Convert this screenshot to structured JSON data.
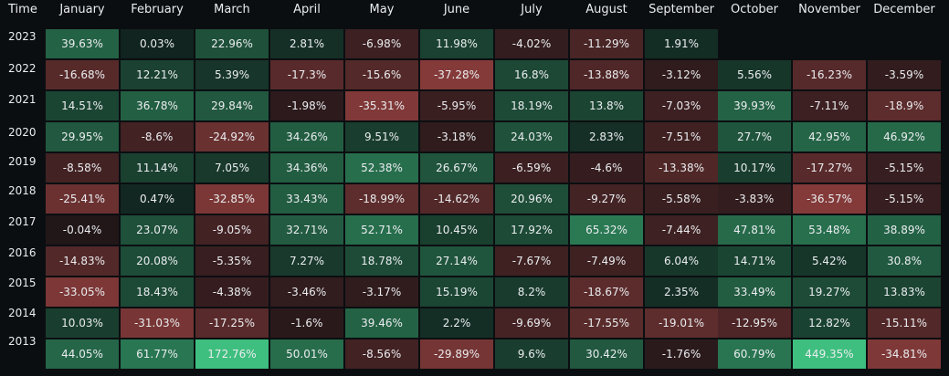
{
  "chart_data": {
    "type": "heatmap",
    "corner_label": "Time",
    "columns": [
      "January",
      "February",
      "March",
      "April",
      "May",
      "June",
      "July",
      "August",
      "September",
      "October",
      "November",
      "December"
    ],
    "rows": [
      "2023",
      "2022",
      "2021",
      "2020",
      "2019",
      "2018",
      "2017",
      "2016",
      "2015",
      "2014",
      "2013"
    ],
    "cells": [
      [
        "39.63%",
        "0.03%",
        "22.96%",
        "2.81%",
        "-6.98%",
        "11.98%",
        "-4.02%",
        "-11.29%",
        "1.91%",
        "",
        "",
        ""
      ],
      [
        "-16.68%",
        "12.21%",
        "5.39%",
        "-17.3%",
        "-15.6%",
        "-37.28%",
        "16.8%",
        "-13.88%",
        "-3.12%",
        "5.56%",
        "-16.23%",
        "-3.59%"
      ],
      [
        "14.51%",
        "36.78%",
        "29.84%",
        "-1.98%",
        "-35.31%",
        "-5.95%",
        "18.19%",
        "13.8%",
        "-7.03%",
        "39.93%",
        "-7.11%",
        "-18.9%"
      ],
      [
        "29.95%",
        "-8.6%",
        "-24.92%",
        "34.26%",
        "9.51%",
        "-3.18%",
        "24.03%",
        "2.83%",
        "-7.51%",
        "27.7%",
        "42.95%",
        "46.92%"
      ],
      [
        "-8.58%",
        "11.14%",
        "7.05%",
        "34.36%",
        "52.38%",
        "26.67%",
        "-6.59%",
        "-4.6%",
        "-13.38%",
        "10.17%",
        "-17.27%",
        "-5.15%"
      ],
      [
        "-25.41%",
        "0.47%",
        "-32.85%",
        "33.43%",
        "-18.99%",
        "-14.62%",
        "20.96%",
        "-9.27%",
        "-5.58%",
        "-3.83%",
        "-36.57%",
        "-5.15%"
      ],
      [
        "-0.04%",
        "23.07%",
        "-9.05%",
        "32.71%",
        "52.71%",
        "10.45%",
        "17.92%",
        "65.32%",
        "-7.44%",
        "47.81%",
        "53.48%",
        "38.89%"
      ],
      [
        "-14.83%",
        "20.08%",
        "-5.35%",
        "7.27%",
        "18.78%",
        "27.14%",
        "-7.67%",
        "-7.49%",
        "6.04%",
        "14.71%",
        "5.42%",
        "30.8%"
      ],
      [
        "-33.05%",
        "18.43%",
        "-4.38%",
        "-3.46%",
        "-3.17%",
        "15.19%",
        "8.2%",
        "-18.67%",
        "2.35%",
        "33.49%",
        "19.27%",
        "13.83%"
      ],
      [
        "10.03%",
        "-31.03%",
        "-17.25%",
        "-1.6%",
        "39.46%",
        "2.2%",
        "-9.69%",
        "-17.55%",
        "-19.01%",
        "-12.95%",
        "12.82%",
        "-15.11%"
      ],
      [
        "44.05%",
        "61.77%",
        "172.76%",
        "50.01%",
        "-8.56%",
        "-29.89%",
        "9.6%",
        "30.42%",
        "-1.76%",
        "60.79%",
        "449.35%",
        "-34.81%"
      ]
    ],
    "colors": {
      "background": "#0b0e11",
      "positive": "#3fbf7f",
      "negative": "#c0504d",
      "text": "#eaecef"
    }
  }
}
